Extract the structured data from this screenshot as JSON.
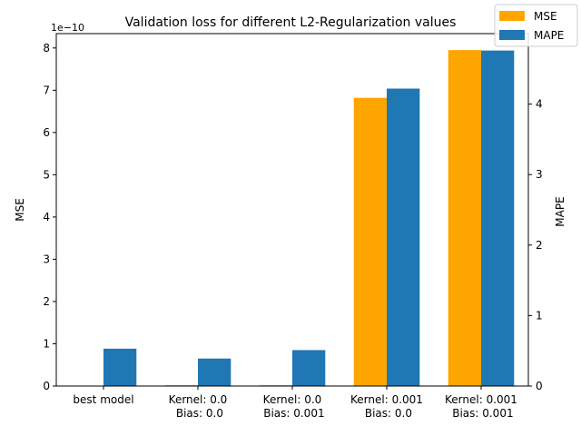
{
  "chart_data": {
    "type": "bar",
    "title": "Validation loss for different L2-Regularization values",
    "categories": [
      [
        "best model"
      ],
      [
        "Kernel: 0.0",
        " Bias: 0.0"
      ],
      [
        "Kernel: 0.0",
        " Bias: 0.001"
      ],
      [
        "Kernel: 0.001",
        " Bias: 0.0"
      ],
      [
        "Kernel: 0.001",
        " Bias: 0.001"
      ]
    ],
    "series": [
      {
        "name": "MSE",
        "axis": "left",
        "color": "#ffa500",
        "values": [
          0,
          2e-12,
          2e-12,
          6.82e-10,
          7.95e-10
        ]
      },
      {
        "name": "MAPE",
        "axis": "right",
        "color": "#1f77b4",
        "values": [
          0.53,
          0.39,
          0.51,
          4.22,
          4.76
        ]
      }
    ],
    "y_left": {
      "label": "MSE",
      "offset_text": "1e−10",
      "scale": 1e-10,
      "ylim": [
        0,
        8.34e-10
      ],
      "ticks": [
        0,
        1,
        2,
        3,
        4,
        5,
        6,
        7,
        8
      ]
    },
    "y_right": {
      "label": "MAPE",
      "ylim": [
        0,
        5.0
      ],
      "ticks": [
        0,
        1,
        2,
        3,
        4
      ]
    },
    "legend": {
      "placement": "top-right",
      "entries": [
        "MSE",
        "MAPE"
      ]
    },
    "grid": false
  }
}
